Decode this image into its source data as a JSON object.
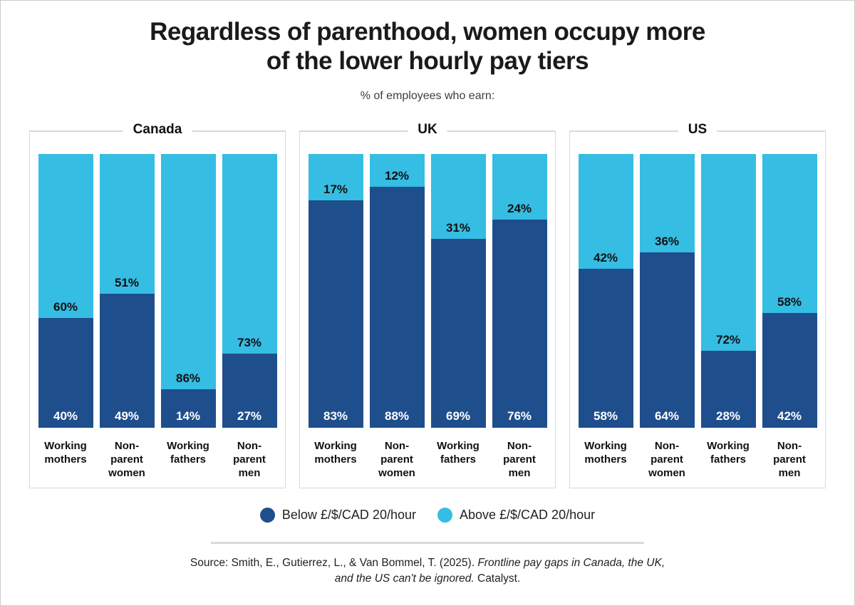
{
  "page": {
    "title": "Regardless of parenthood, women occupy more of the lower hourly pay tiers",
    "subtitle": "% of employees who earn:"
  },
  "colors": {
    "below": "#1F4E8D",
    "above": "#36BDE3",
    "panel_border": "#D9D9D9",
    "divider": "#D9D9D9",
    "above_label_text": "#111111",
    "below_label_text": "#FFFFFF"
  },
  "legend": {
    "items": [
      {
        "name": "below",
        "label": "Below £/$/CAD 20/hour",
        "color": "#1F4E8D"
      },
      {
        "name": "above",
        "label": "Above £/$/CAD 20/hour",
        "color": "#36BDE3"
      }
    ]
  },
  "source": {
    "prefix": "Source: Smith, E., Gutierrez, L., & Van Bommel, T. (2025). ",
    "italic": "Frontline pay gaps in Canada, the UK, and the US can't be ignored.",
    "suffix": " Catalyst."
  },
  "chart_data": {
    "type": "bar",
    "stacked": true,
    "orientation": "vertical",
    "unit": "%",
    "ylim": [
      0,
      100
    ],
    "grid": false,
    "legend_position": "bottom",
    "title": "Regardless of parenthood, women occupy more of the lower hourly pay tiers",
    "subtitle": "% of employees who earn:",
    "categories": [
      "Working mothers",
      "Non-parent women",
      "Working fathers",
      "Non-parent men"
    ],
    "category_label_lines": [
      "Working\nmothers",
      "Non-\nparent\nwomen",
      "Working\nfathers",
      "Non-\nparent\nmen"
    ],
    "series_names": [
      "Below £/$/CAD 20/hour",
      "Above £/$/CAD 20/hour"
    ],
    "panels": [
      {
        "name": "Canada",
        "series": [
          {
            "name": "Below £/$/CAD 20/hour",
            "values": [
              40,
              49,
              14,
              27
            ]
          },
          {
            "name": "Above £/$/CAD 20/hour",
            "values": [
              60,
              51,
              86,
              73
            ]
          }
        ]
      },
      {
        "name": "UK",
        "series": [
          {
            "name": "Below £/$/CAD 20/hour",
            "values": [
              83,
              88,
              69,
              76
            ]
          },
          {
            "name": "Above £/$/CAD 20/hour",
            "values": [
              17,
              12,
              31,
              24
            ]
          }
        ]
      },
      {
        "name": "US",
        "series": [
          {
            "name": "Below £/$/CAD 20/hour",
            "values": [
              58,
              64,
              28,
              42
            ]
          },
          {
            "name": "Above £/$/CAD 20/hour",
            "values": [
              42,
              36,
              72,
              58
            ]
          }
        ]
      }
    ]
  }
}
